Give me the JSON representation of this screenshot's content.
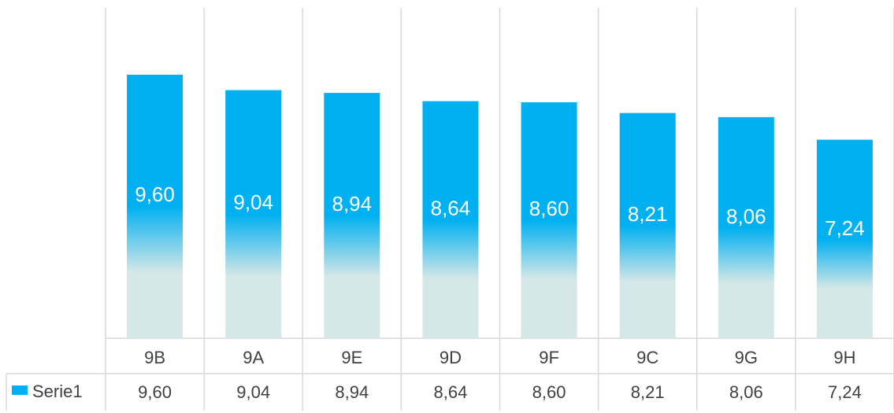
{
  "chart_data": {
    "type": "bar",
    "categories": [
      "9B",
      "9A",
      "9E",
      "9D",
      "9F",
      "9C",
      "9G",
      "9H"
    ],
    "series": [
      {
        "name": "Serie1",
        "values": [
          9.6,
          9.04,
          8.94,
          8.64,
          8.6,
          8.21,
          8.06,
          7.24
        ],
        "labels": [
          "9,60",
          "9,04",
          "8,94",
          "8,64",
          "8,60",
          "8,21",
          "8,06",
          "7,24"
        ]
      }
    ],
    "title": "",
    "xlabel": "",
    "ylabel": "",
    "ylim": [
      0,
      10
    ],
    "grid": "vertical",
    "legend": "data-table",
    "colors": {
      "bar_top": "#00b0f0",
      "bar_bottom": "#d6e7e7",
      "grid": "#d9d9d9",
      "text": "#404040",
      "label": "#ffffff"
    }
  }
}
